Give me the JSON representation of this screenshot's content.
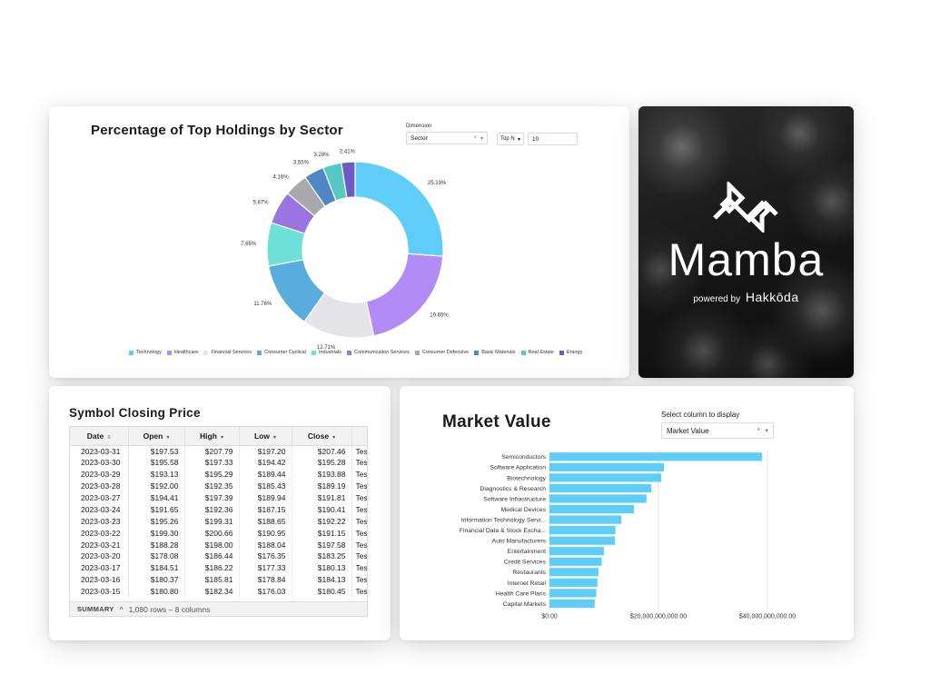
{
  "sector_card": {
    "title": "Percentage of Top Holdings by Sector",
    "dimension_label": "Dimension",
    "dimension_value": "Sector",
    "topn_select": "Top N",
    "topn_value": "10"
  },
  "mamba_card": {
    "wordmark": "Mamba",
    "powered_by": "powered by",
    "brand": "Hakkōda"
  },
  "price_card": {
    "title": "Symbol Closing Price",
    "columns": [
      "Date",
      "Open",
      "High",
      "Low",
      "Close",
      ""
    ],
    "rows": [
      [
        "2023-03-31",
        "$197.53",
        "$207.79",
        "$197.20",
        "$207.46",
        "Tesla"
      ],
      [
        "2023-03-30",
        "$195.58",
        "$197.33",
        "$194.42",
        "$195.28",
        "Tesla"
      ],
      [
        "2023-03-29",
        "$193.13",
        "$195.29",
        "$189.44",
        "$193.88",
        "Tesla"
      ],
      [
        "2023-03-28",
        "$192.00",
        "$192.35",
        "$185.43",
        "$189.19",
        "Tesla"
      ],
      [
        "2023-03-27",
        "$194.41",
        "$197.39",
        "$189.94",
        "$191.81",
        "Tesla"
      ],
      [
        "2023-03-24",
        "$191.65",
        "$192.36",
        "$187.15",
        "$190.41",
        "Tesla"
      ],
      [
        "2023-03-23",
        "$195.26",
        "$199.31",
        "$188.65",
        "$192.22",
        "Tesla"
      ],
      [
        "2023-03-22",
        "$199.30",
        "$200.66",
        "$190.95",
        "$191.15",
        "Tesla"
      ],
      [
        "2023-03-21",
        "$188.28",
        "$198.00",
        "$188.04",
        "$197.58",
        "Tesla"
      ],
      [
        "2023-03-20",
        "$178.08",
        "$186.44",
        "$176.35",
        "$183.25",
        "Tesla"
      ],
      [
        "2023-03-17",
        "$184.51",
        "$186.22",
        "$177.33",
        "$180.13",
        "Tesla"
      ],
      [
        "2023-03-16",
        "$180.37",
        "$185.81",
        "$178.84",
        "$184.13",
        "Tesla"
      ],
      [
        "2023-03-15",
        "$180.80",
        "$182.34",
        "$176.03",
        "$180.45",
        "Tesla"
      ]
    ],
    "summary_label": "SUMMARY",
    "summary_text": "1,080 rows – 8 columns"
  },
  "market_card": {
    "title": "Market Value",
    "select_label": "Select column to display",
    "select_value": "Market Value"
  },
  "chart_data": [
    {
      "type": "pie",
      "title": "Percentage of Top Holdings by Sector",
      "donut": true,
      "legend_position": "bottom",
      "categories": [
        "Technology",
        "Healthcare",
        "Financial Services",
        "Consumer Cyclical",
        "Industrials",
        "Communication Services",
        "Consumer Defensive",
        "Basic Materials",
        "Real Estate",
        "Energy"
      ],
      "values": [
        25.19,
        19.65,
        12.71,
        11.76,
        7.65,
        5.87,
        4.16,
        3.55,
        3.28,
        2.41
      ],
      "labels": [
        "25.19%",
        "19.65%",
        "12.71%",
        "11.76%",
        "7.65%",
        "5.87%",
        "4.16%",
        "3.55%",
        "3.28%",
        "2.41%"
      ],
      "colors": [
        "#5ecdf8",
        "#b38bf7",
        "#e4e4e8",
        "#58acde",
        "#6fe0d8",
        "#9a74e0",
        "#a9a9ad",
        "#4f86c6",
        "#55c8c4",
        "#6c5bc4"
      ]
    },
    {
      "type": "bar",
      "orientation": "horizontal",
      "title": "Market Value",
      "categories": [
        "Semiconductors",
        "Software Application",
        "Biotechnology",
        "Diagnostics & Research",
        "Software Infrastructure",
        "Medical Devices",
        "Information Technology Servi...",
        "Financial Data & Stock Excha...",
        "Auto Manufacturers",
        "Entertainment",
        "Credit Services",
        "Restaurants",
        "Internet Retail",
        "Health Care Plans",
        "Capital Markets"
      ],
      "values": [
        39000000000,
        21000000000,
        20500000000,
        18700000000,
        17800000000,
        15500000000,
        13200000000,
        12100000000,
        12000000000,
        10000000000,
        9600000000,
        9000000000,
        8800000000,
        8600000000,
        8300000000
      ],
      "xlim": [
        0,
        48000000000
      ],
      "xticks": [
        "$0.00",
        "$20,000,000,000.00",
        "$40,000,000,000.00"
      ],
      "xtick_values": [
        0,
        20000000000,
        40000000000
      ],
      "color": "#5ecdf8",
      "grid": true
    }
  ]
}
